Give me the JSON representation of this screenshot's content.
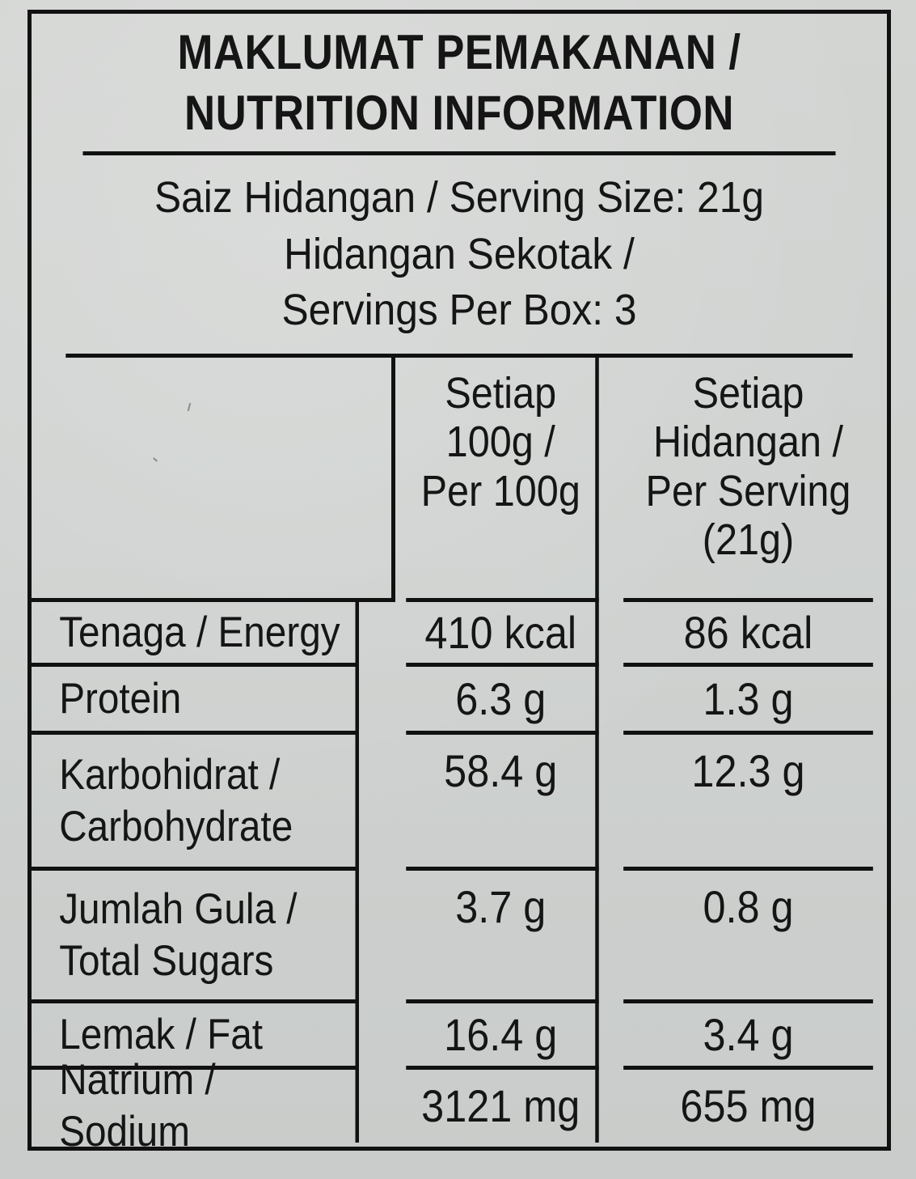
{
  "title": {
    "line1": "MAKLUMAT PEMAKANAN /",
    "line2": "NUTRITION INFORMATION"
  },
  "serving": {
    "line1": "Saiz Hidangan / Serving Size: 21g",
    "line2": "Hidangan Sekotak /",
    "line3": "Servings Per Box: 3"
  },
  "columns": {
    "per100": [
      "Setiap",
      "100g /",
      "Per 100g"
    ],
    "perServing": [
      "Setiap",
      "Hidangan /",
      "Per Serving",
      "(21g)"
    ]
  },
  "rows": [
    {
      "label": [
        "Tenaga / Energy"
      ],
      "per100": "410 kcal",
      "perServing": "86 kcal"
    },
    {
      "label": [
        "Protein"
      ],
      "per100": "6.3 g",
      "perServing": "1.3 g"
    },
    {
      "label": [
        "Karbohidrat /",
        "Carbohydrate"
      ],
      "per100": "58.4 g",
      "perServing": "12.3 g"
    },
    {
      "label": [
        "Jumlah Gula /",
        "Total Sugars"
      ],
      "per100": "3.7 g",
      "perServing": "0.8 g"
    },
    {
      "label": [
        "Lemak / Fat"
      ],
      "per100": "16.4 g",
      "perServing": "3.4 g"
    },
    {
      "label": [
        "Natrium / Sodium"
      ],
      "per100": "3121 mg",
      "perServing": "655 mg"
    }
  ],
  "colors": {
    "background": "#cfd2d0",
    "ink": "#151515",
    "border": "#111111"
  }
}
